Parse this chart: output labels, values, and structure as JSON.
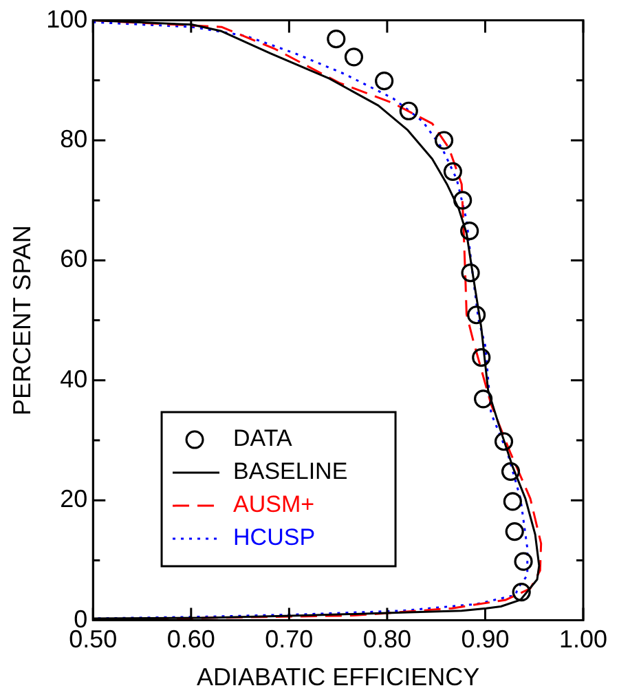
{
  "chart_data": {
    "type": "line",
    "xlabel": "ADIABATIC EFFICIENCY",
    "ylabel": "PERCENT SPAN",
    "xlim": [
      0.5,
      1.0
    ],
    "xticks": [
      {
        "value": 0.5,
        "label": "0.50"
      },
      {
        "value": 0.6,
        "label": "0.60"
      },
      {
        "value": 0.7,
        "label": "0.70"
      },
      {
        "value": 0.8,
        "label": "0.80"
      },
      {
        "value": 0.9,
        "label": "0.90"
      },
      {
        "value": 1.0,
        "label": "1.00"
      }
    ],
    "ylim": [
      0,
      100
    ],
    "yticks": [
      0,
      {
        "value": 10,
        "label": null
      },
      20,
      {
        "value": 30,
        "label": null
      },
      40,
      {
        "value": 50,
        "label": null
      },
      60,
      {
        "value": 70,
        "label": null
      },
      80,
      {
        "value": 90,
        "label": null
      },
      100
    ],
    "grid": false,
    "legend": "bottom left",
    "series": [
      {
        "name": "DATA",
        "type": "scatter",
        "marker": "circle",
        "color": "#000000",
        "x": [
          0.748,
          0.766,
          0.797,
          0.822,
          0.858,
          0.867,
          0.877,
          0.884,
          0.885,
          0.891,
          0.896,
          0.898,
          0.919,
          0.926,
          0.928,
          0.93,
          0.939,
          0.937
        ],
        "values": [
          96.9,
          93.9,
          89.9,
          84.9,
          80.0,
          74.8,
          70.0,
          64.9,
          57.9,
          50.9,
          43.8,
          36.9,
          29.8,
          24.8,
          19.8,
          14.8,
          9.8,
          4.7
        ]
      },
      {
        "name": "BASELINE",
        "line_style": "solid",
        "marker": "none",
        "color": "#000000",
        "x": [
          0.5,
          0.601,
          0.631,
          0.681,
          0.741,
          0.791,
          0.821,
          0.846,
          0.861,
          0.873,
          0.881,
          0.888,
          0.896,
          0.903,
          0.916,
          0.928,
          0.941,
          0.951,
          0.955,
          0.953,
          0.936,
          0.916,
          0.901,
          0.876,
          0.816,
          0.716,
          0.616,
          0.5
        ],
        "values": [
          100,
          99.3,
          98.2,
          94.5,
          90.3,
          85.8,
          81.7,
          76.9,
          72.7,
          68.6,
          64.5,
          57.0,
          48.8,
          38.3,
          31.5,
          25.6,
          20.3,
          14.3,
          9.1,
          6.8,
          3.4,
          2.3,
          2.0,
          1.6,
          1.3,
          0.8,
          0.4,
          0.3
        ]
      },
      {
        "name": "AUSM+",
        "line_style": "dashed",
        "marker": "none",
        "color": "#ff0000",
        "x": [
          0.5,
          0.631,
          0.686,
          0.751,
          0.806,
          0.846,
          0.863,
          0.876,
          0.878,
          0.88,
          0.881,
          0.888,
          0.906,
          0.926,
          0.946,
          0.957,
          0.956,
          0.946,
          0.921,
          0.866,
          0.766,
          0.616,
          0.5
        ],
        "values": [
          100,
          98.9,
          95.2,
          89.6,
          86.2,
          82.8,
          78.7,
          72.7,
          65.2,
          56.2,
          51.0,
          46.5,
          36.0,
          27.8,
          20.3,
          12.8,
          8.3,
          5.3,
          3.4,
          2.0,
          0.8,
          0.4,
          0.0
        ]
      },
      {
        "name": "HCUSP",
        "line_style": "dotted",
        "marker": "none",
        "color": "#0000ff",
        "x": [
          0.5,
          0.601,
          0.656,
          0.706,
          0.756,
          0.806,
          0.836,
          0.856,
          0.871,
          0.881,
          0.886,
          0.893,
          0.9,
          0.906,
          0.923,
          0.936,
          0.943,
          0.943,
          0.933,
          0.931,
          0.891,
          0.816,
          0.716,
          0.616,
          0.5
        ],
        "values": [
          99.7,
          98.9,
          97.4,
          94.5,
          91.1,
          87.0,
          83.2,
          78.7,
          73.5,
          66.7,
          59.3,
          50.3,
          45.8,
          34.5,
          27.8,
          20.3,
          12.0,
          7.5,
          5.3,
          4.2,
          2.7,
          1.6,
          1.0,
          0.6,
          0.3
        ]
      }
    ]
  }
}
